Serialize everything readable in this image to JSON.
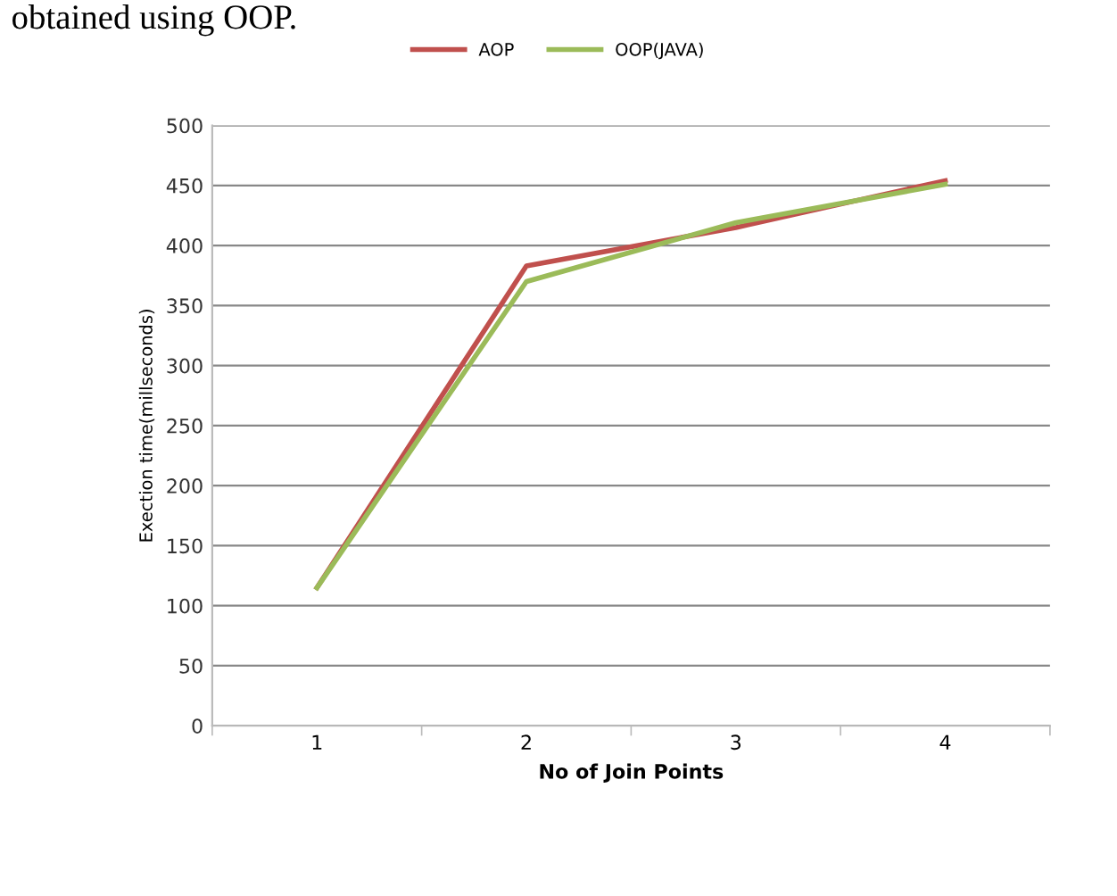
{
  "chart_data": {
    "type": "line",
    "xlabel": "No of Join Points",
    "ylabel": "Exection time(millseconds)",
    "annotations": [
      "obtained using OOP."
    ],
    "categories": [
      "1",
      "2",
      "3",
      "4"
    ],
    "series": [
      {
        "name": "AOP",
        "color": "#c0504d",
        "values": [
          115,
          383,
          415,
          454
        ]
      },
      {
        "name": "OOP(JAVA)",
        "color": "#9bbb59",
        "values": [
          115,
          370,
          419,
          451
        ]
      }
    ],
    "ylim": [
      0,
      500
    ],
    "yticks": [
      0,
      50,
      100,
      150,
      200,
      250,
      300,
      350,
      400,
      450,
      500
    ],
    "grid": "y",
    "legend": "top",
    "marker": "none",
    "line_style": "solid"
  }
}
